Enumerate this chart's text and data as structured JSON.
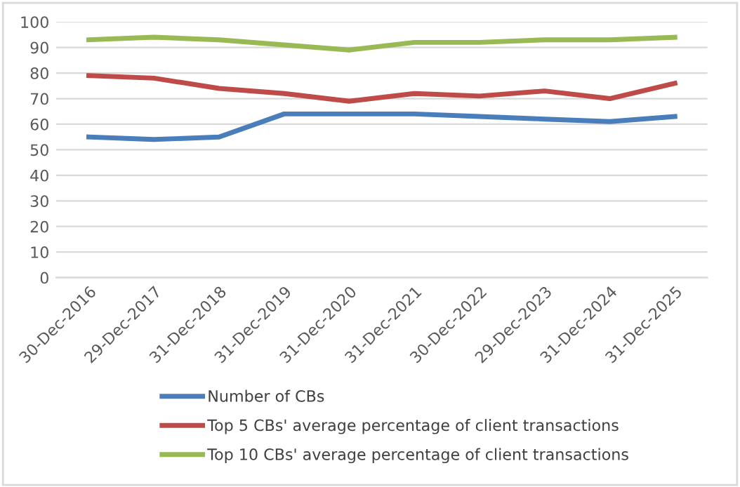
{
  "chart_data": {
    "type": "line",
    "categories": [
      "30-Dec-2016",
      "29-Dec-2017",
      "31-Dec-2018",
      "31-Dec-2019",
      "31-Dec-2020",
      "31-Dec-2021",
      "30-Dec-2022",
      "29-Dec-2023",
      "31-Dec-2024",
      "31-Dec-2025"
    ],
    "series": [
      {
        "name": "Number of CBs",
        "color": "#4a7ebb",
        "values": [
          55,
          54,
          55,
          64,
          64,
          64,
          63,
          62,
          61,
          63
        ]
      },
      {
        "name": "Top 5 CBs' average percentage of client transactions",
        "color": "#be4b48",
        "values": [
          79,
          78,
          74,
          72,
          69,
          72,
          71,
          73,
          70,
          76
        ]
      },
      {
        "name": "Top 10 CBs' average percentage of client transactions",
        "color": "#98b954",
        "values": [
          93,
          94,
          93,
          91,
          89,
          92,
          92,
          93,
          93,
          94
        ]
      }
    ],
    "ylim": [
      0,
      100
    ],
    "yticks": [
      0,
      10,
      20,
      30,
      40,
      50,
      60,
      70,
      80,
      90,
      100
    ],
    "grid": "y",
    "legend": "bottom",
    "marker": "none",
    "line_style": "solid"
  }
}
